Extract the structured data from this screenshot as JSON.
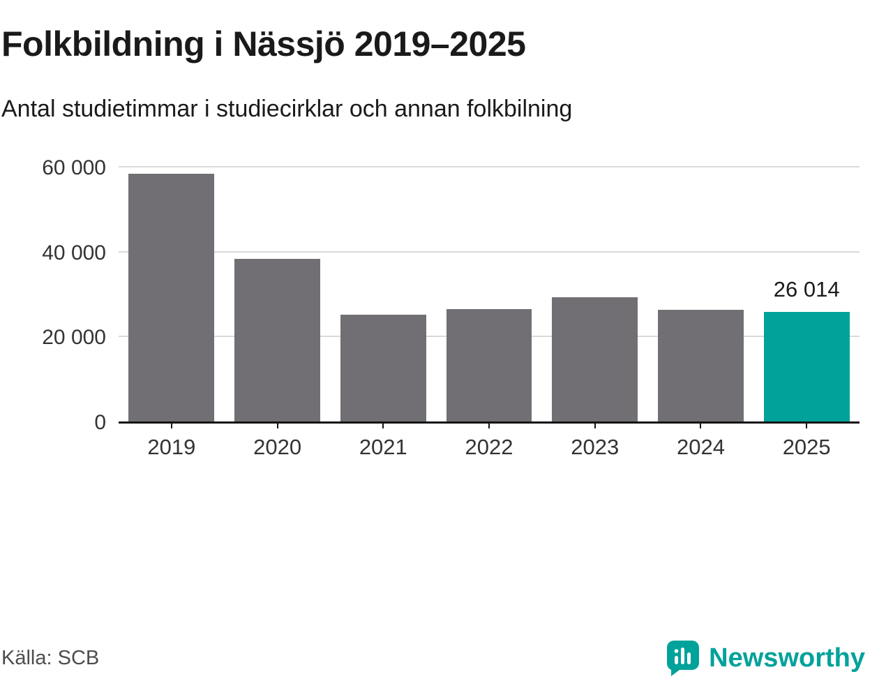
{
  "header": {
    "title": "Folkbildning i Nässjö 2019–2025",
    "subtitle": "Antal studietimmar i studiecirklar och annan folkbilning"
  },
  "chart_data": {
    "type": "bar",
    "title": "Folkbildning i Nässjö 2019–2025",
    "subtitle": "Antal studietimmar i studiecirklar och annan folkbilning",
    "categories": [
      "2019",
      "2020",
      "2021",
      "2022",
      "2023",
      "2024",
      "2025"
    ],
    "values": [
      58500,
      38500,
      25300,
      26600,
      29400,
      26500,
      26014
    ],
    "xlabel": "",
    "ylabel": "",
    "ylim": [
      0,
      60000
    ],
    "yticks": [
      {
        "value": 0,
        "label": "0"
      },
      {
        "value": 20000,
        "label": "20 000"
      },
      {
        "value": 40000,
        "label": "40 000"
      },
      {
        "value": 60000,
        "label": "60 000"
      }
    ],
    "grid": "horizontal",
    "legend": "none",
    "bar_color": "#716f74",
    "highlight_color": "#00a29a",
    "highlight_index": 6,
    "annotations": [
      {
        "index": 6,
        "text": "26 014"
      }
    ]
  },
  "footer": {
    "source": "Källa: SCB",
    "brand": "Newsworthy",
    "brand_color": "#00a29a"
  }
}
